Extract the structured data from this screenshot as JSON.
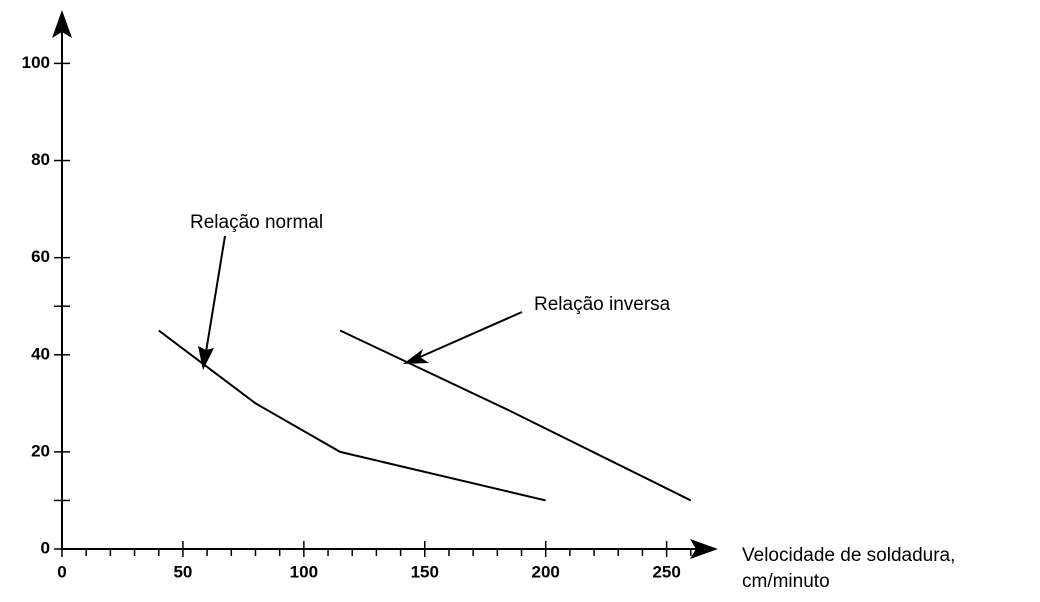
{
  "chart_data": {
    "type": "line",
    "x_label_lines": [
      "Velocidade de soldadura,",
      "cm/minuto"
    ],
    "xlim": [
      0,
      270
    ],
    "ylim": [
      0,
      111
    ],
    "xticks": [
      0,
      50,
      100,
      150,
      200,
      250
    ],
    "xminor_ticks": [
      10,
      20,
      30,
      40,
      60,
      70,
      80,
      90,
      110,
      120,
      130,
      140,
      160,
      170,
      180,
      190,
      210,
      220,
      230,
      240,
      260
    ],
    "yticks": [
      0,
      20,
      40,
      60,
      80,
      100
    ],
    "yminor_ticks": [
      10,
      50
    ],
    "color": "#000000",
    "series": [
      {
        "x": [
          40,
          60,
          80,
          115,
          200
        ],
        "values": [
          45,
          37.5,
          30,
          20,
          10
        ]
      },
      {
        "x": [
          115,
          185,
          260
        ],
        "values": [
          45,
          28.5,
          10
        ]
      }
    ],
    "annotations": [
      "Relação normal",
      "Relação inversa"
    ]
  }
}
